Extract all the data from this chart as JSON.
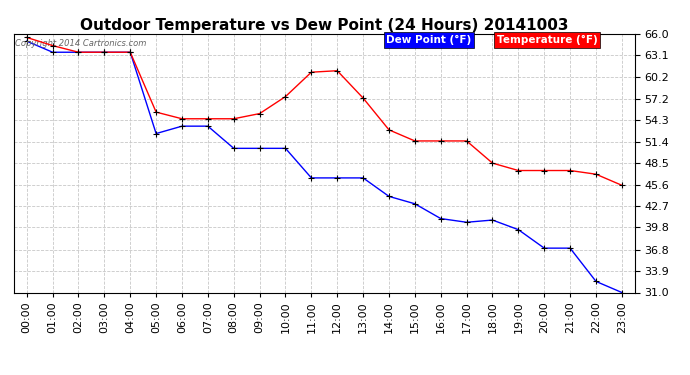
{
  "title": "Outdoor Temperature vs Dew Point (24 Hours) 20141003",
  "copyright": "Copyright 2014 Cartronics.com",
  "background_color": "#ffffff",
  "plot_background": "#ffffff",
  "grid_color": "#c8c8c8",
  "x_labels": [
    "00:00",
    "01:00",
    "02:00",
    "03:00",
    "04:00",
    "05:00",
    "06:00",
    "07:00",
    "08:00",
    "09:00",
    "10:00",
    "11:00",
    "12:00",
    "13:00",
    "14:00",
    "15:00",
    "16:00",
    "17:00",
    "18:00",
    "19:00",
    "20:00",
    "21:00",
    "22:00",
    "23:00"
  ],
  "y_ticks": [
    31.0,
    33.9,
    36.8,
    39.8,
    42.7,
    45.6,
    48.5,
    51.4,
    54.3,
    57.2,
    60.2,
    63.1,
    66.0
  ],
  "temperature": [
    65.5,
    64.4,
    63.5,
    63.5,
    63.5,
    55.4,
    54.5,
    54.5,
    54.5,
    55.2,
    57.5,
    60.8,
    61.0,
    57.3,
    53.0,
    51.5,
    51.5,
    51.5,
    48.5,
    47.5,
    47.5,
    47.5,
    47.0,
    45.5
  ],
  "dew_point": [
    65.0,
    63.5,
    63.5,
    63.5,
    63.5,
    52.5,
    53.5,
    53.5,
    50.5,
    50.5,
    50.5,
    46.5,
    46.5,
    46.5,
    44.0,
    43.0,
    41.0,
    40.5,
    40.8,
    39.5,
    37.0,
    37.0,
    32.5,
    31.0
  ],
  "temp_color": "#ff0000",
  "dew_color": "#0000ff",
  "marker_color": "#000000",
  "legend_dew_bg": "#0000ff",
  "legend_temp_bg": "#ff0000",
  "legend_text_color": "#ffffff",
  "title_fontsize": 11,
  "tick_fontsize": 8,
  "copyright_fontsize": 6,
  "legend_fontsize": 7.5
}
